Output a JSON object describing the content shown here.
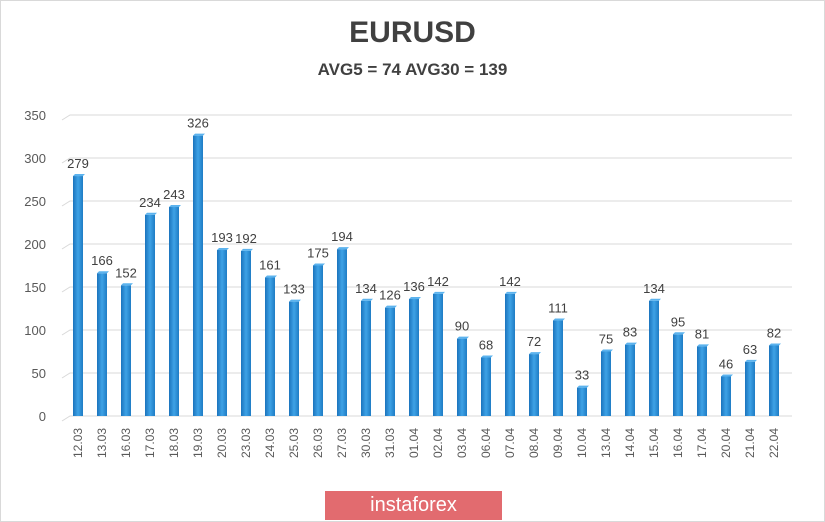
{
  "chart_data": {
    "type": "bar",
    "title": "EURUSD",
    "subtitle": "AVG5 = 74 AVG30 = 139",
    "xlabel": "",
    "ylabel": "",
    "ylim": [
      0,
      350
    ],
    "yticks": [
      0,
      50,
      100,
      150,
      200,
      250,
      300,
      350
    ],
    "grid": true,
    "legend": "none",
    "bar_color": "#2e8fd6",
    "categories": [
      "12.03",
      "13.03",
      "16.03",
      "17.03",
      "18.03",
      "19.03",
      "20.03",
      "23.03",
      "24.03",
      "25.03",
      "26.03",
      "27.03",
      "30.03",
      "31.03",
      "01.04",
      "02.04",
      "03.04",
      "06.04",
      "07.04",
      "08.04",
      "09.04",
      "10.04",
      "13.04",
      "14.04",
      "15.04",
      "16.04",
      "17.04",
      "20.04",
      "21.04",
      "22.04"
    ],
    "values": [
      279,
      166,
      152,
      234,
      243,
      326,
      193,
      192,
      161,
      133,
      175,
      194,
      134,
      126,
      136,
      142,
      90,
      68,
      142,
      72,
      111,
      33,
      75,
      83,
      134,
      95,
      81,
      46,
      63,
      82
    ]
  },
  "watermark": "instaforex"
}
